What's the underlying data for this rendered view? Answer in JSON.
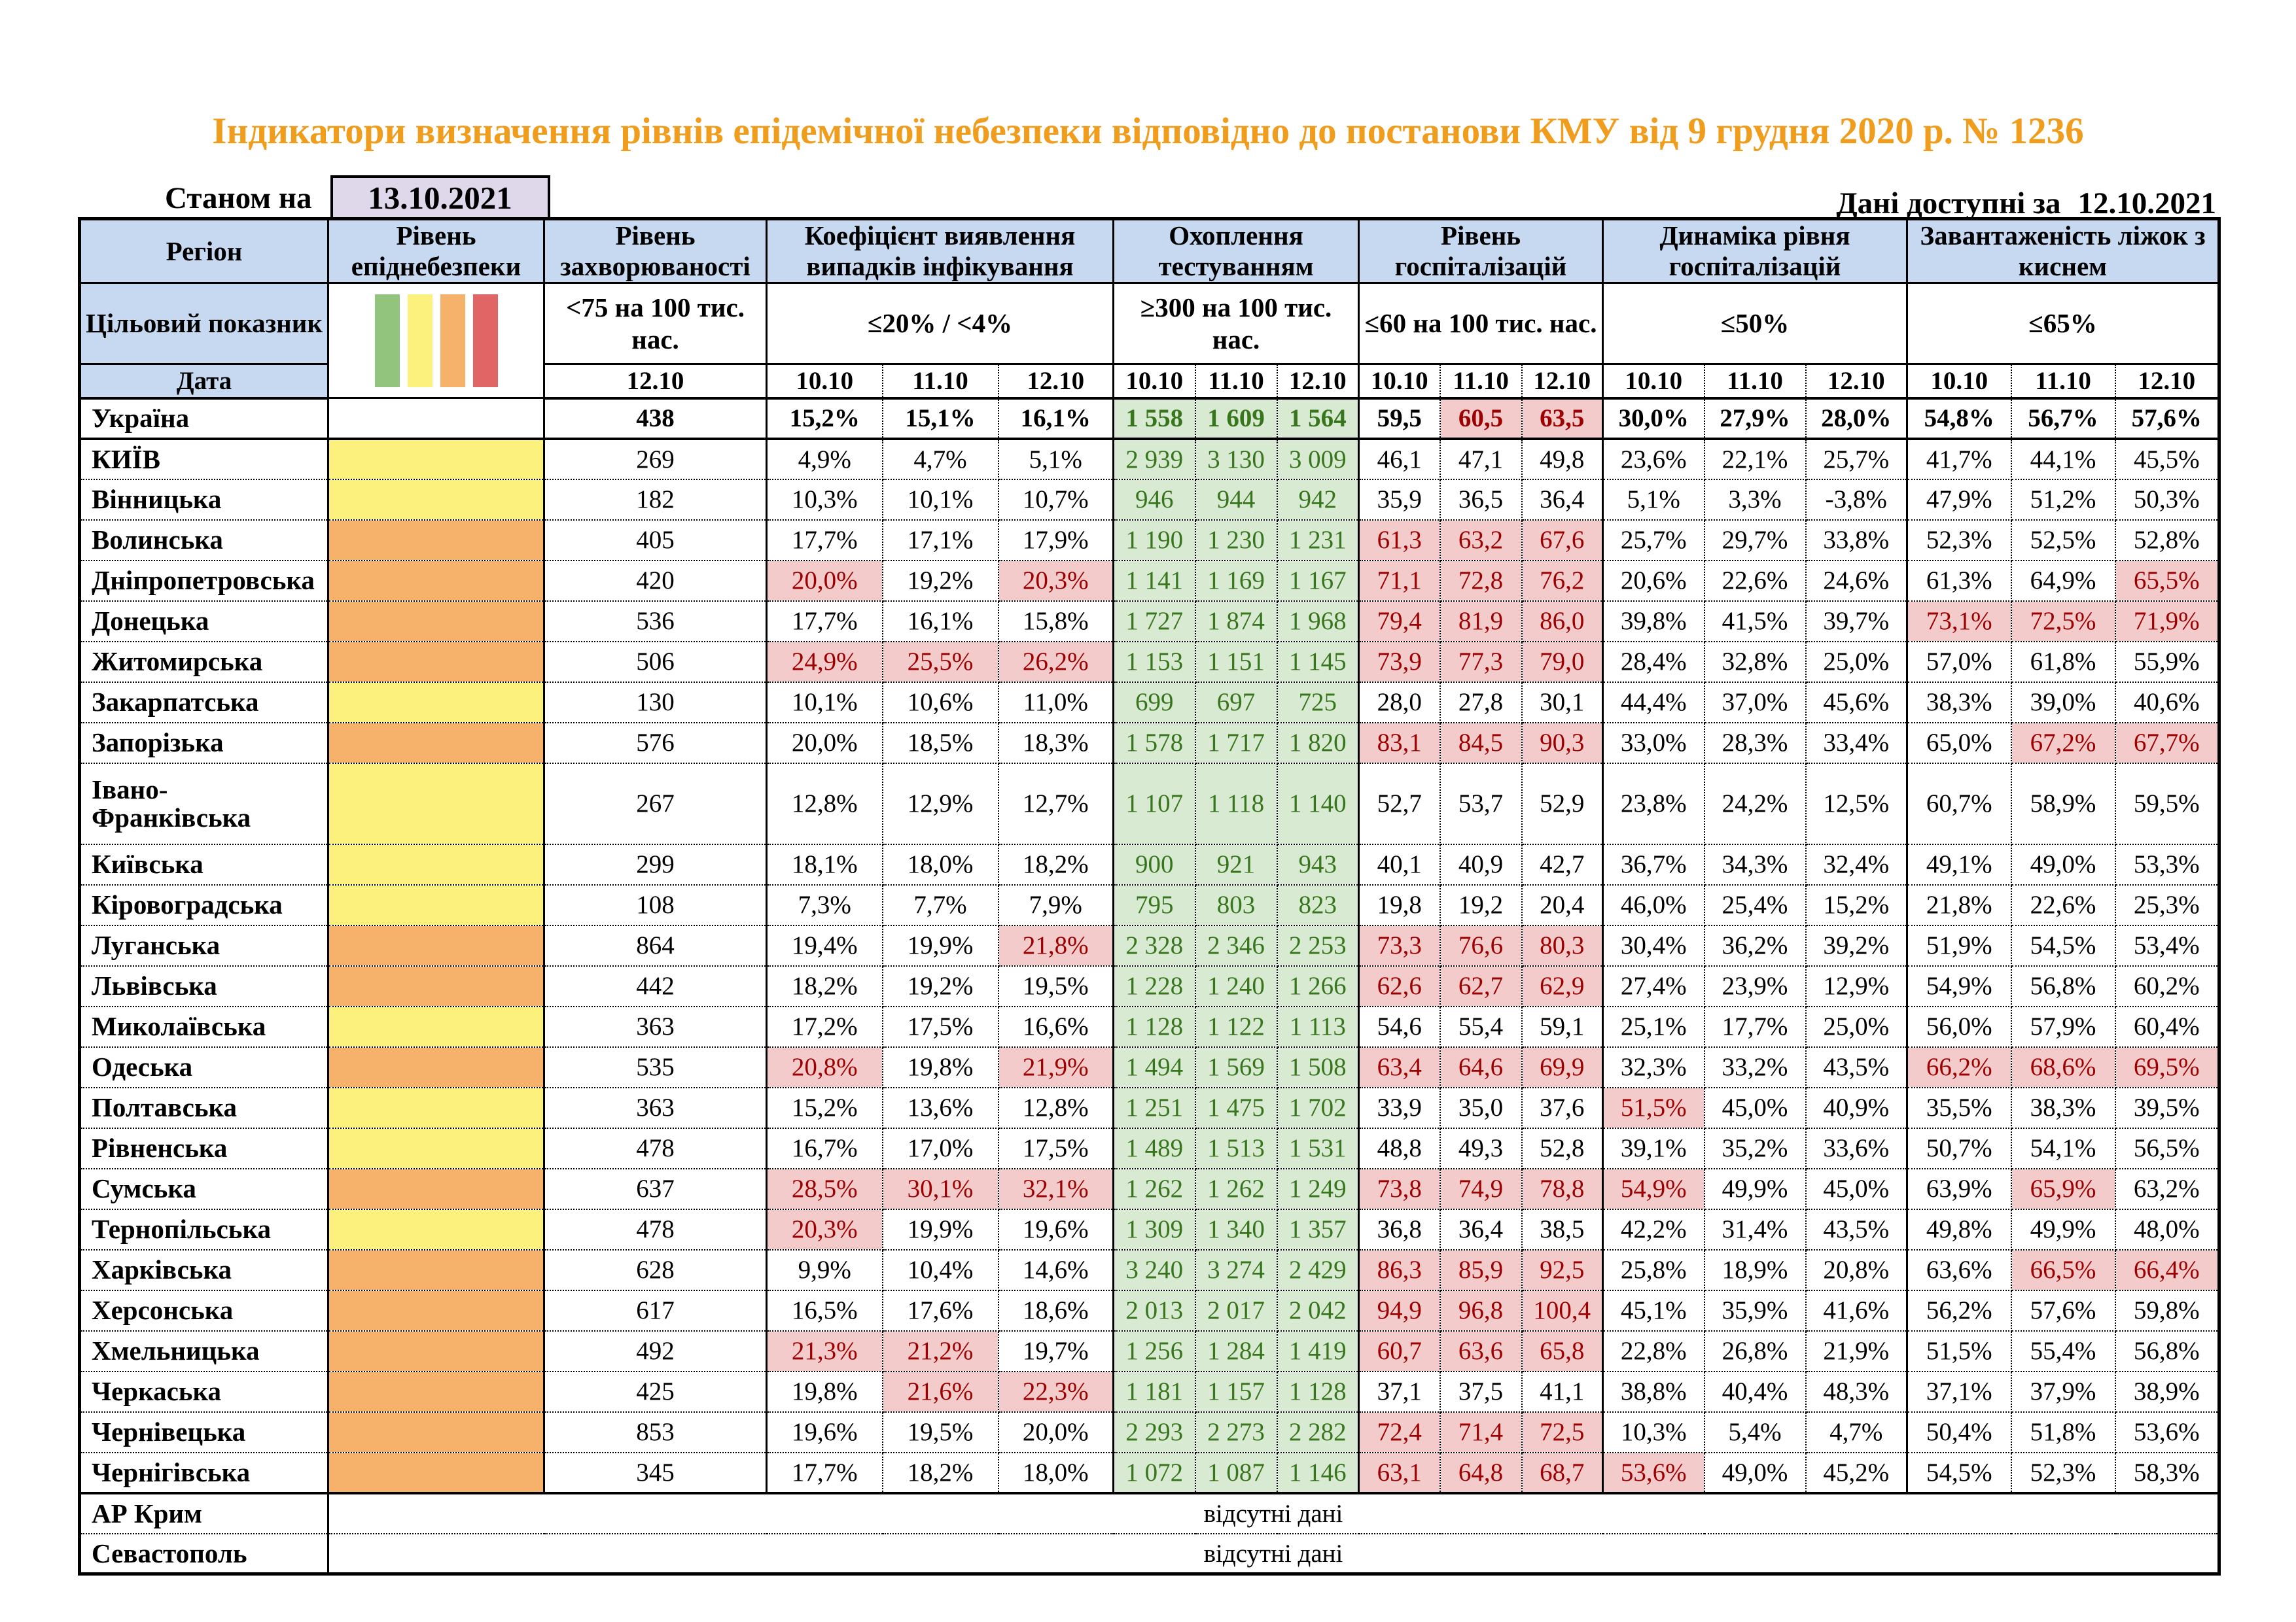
{
  "title": "Індикатори визначення рівнів епідемічної небезпеки відповідно до постанови КМУ від 9 грудня 2020 р. № 1236",
  "as_of_label": "Станом на",
  "as_of_date": "13.10.2021",
  "data_available_label": "Дані доступні за",
  "data_available_date": "12.10.2021",
  "no_data_text": "відсутні дані",
  "colors": {
    "title_orange": "#F09C1C",
    "header_blue": "#C6D9F0",
    "asof_box": "#DFD8EA",
    "level_green": "#93C47D",
    "level_yellow": "#FBF17C",
    "level_orange": "#F6B26B",
    "level_red": "#E06666",
    "bad_bg": "#F3CBCB",
    "bad_text": "#9C0000",
    "good_bg": "#D9EAD3",
    "good_text": "#38761D"
  },
  "legend_order": [
    "green",
    "yellow",
    "orange",
    "red"
  ],
  "columns": {
    "region": "Регіон",
    "target_label": "Цільовий показник",
    "date_label": "Дата",
    "groups": [
      {
        "id": "danger",
        "title": "Рівень епіднебезпеки",
        "target": "",
        "dates": []
      },
      {
        "id": "incidence",
        "title": "Рівень захворюваності",
        "target": "<75 на 100 тис. нас.",
        "dates": [
          "12.10"
        ]
      },
      {
        "id": "detection",
        "title": "Коефіцієнт виявлення випадків інфікування",
        "target": "≤20% / <4%",
        "dates": [
          "10.10",
          "11.10",
          "12.10"
        ]
      },
      {
        "id": "testing",
        "title": "Охоплення тестуванням",
        "target": "≥300 на 100 тис. нас.",
        "dates": [
          "10.10",
          "11.10",
          "12.10"
        ]
      },
      {
        "id": "hospital",
        "title": "Рівень госпіталізацій",
        "target": "≤60 на 100 тис. нас.",
        "dates": [
          "10.10",
          "11.10",
          "12.10"
        ]
      },
      {
        "id": "dynamics",
        "title": "Динаміка рівня госпіталізацій",
        "target": "≤50%",
        "dates": [
          "10.10",
          "11.10",
          "12.10"
        ]
      },
      {
        "id": "oxygen",
        "title": "Завантаженість ліжок з киснем",
        "target": "≤65%",
        "dates": [
          "10.10",
          "11.10",
          "12.10"
        ]
      }
    ]
  },
  "rows": [
    {
      "region": "Україна",
      "bold": true,
      "danger": null,
      "incidence": "438",
      "detection": [
        "15,2%",
        "15,1%",
        "16,1%"
      ],
      "testing": [
        "1 558",
        "1 609",
        "1 564"
      ],
      "hospital": [
        "59,5",
        "60,5",
        "63,5"
      ],
      "dynamics": [
        "30,0%",
        "27,9%",
        "28,0%"
      ],
      "oxygen": [
        "54,8%",
        "56,7%",
        "57,6%"
      ],
      "bad": {
        "hospital": [
          1,
          2
        ]
      }
    },
    {
      "region": "КИЇВ",
      "danger": "yellow",
      "incidence": "269",
      "detection": [
        "4,9%",
        "4,7%",
        "5,1%"
      ],
      "testing": [
        "2 939",
        "3 130",
        "3 009"
      ],
      "hospital": [
        "46,1",
        "47,1",
        "49,8"
      ],
      "dynamics": [
        "23,6%",
        "22,1%",
        "25,7%"
      ],
      "oxygen": [
        "41,7%",
        "44,1%",
        "45,5%"
      ]
    },
    {
      "region": "Вінницька",
      "danger": "yellow",
      "incidence": "182",
      "detection": [
        "10,3%",
        "10,1%",
        "10,7%"
      ],
      "testing": [
        "946",
        "944",
        "942"
      ],
      "hospital": [
        "35,9",
        "36,5",
        "36,4"
      ],
      "dynamics": [
        "5,1%",
        "3,3%",
        "-3,8%"
      ],
      "oxygen": [
        "47,9%",
        "51,2%",
        "50,3%"
      ]
    },
    {
      "region": "Волинська",
      "danger": "orange",
      "incidence": "405",
      "detection": [
        "17,7%",
        "17,1%",
        "17,9%"
      ],
      "testing": [
        "1 190",
        "1 230",
        "1 231"
      ],
      "hospital": [
        "61,3",
        "63,2",
        "67,6"
      ],
      "dynamics": [
        "25,7%",
        "29,7%",
        "33,8%"
      ],
      "oxygen": [
        "52,3%",
        "52,5%",
        "52,8%"
      ],
      "bad": {
        "hospital": [
          0,
          1,
          2
        ]
      }
    },
    {
      "region": "Дніпропетровська",
      "danger": "orange",
      "incidence": "420",
      "detection": [
        "20,0%",
        "19,2%",
        "20,3%"
      ],
      "testing": [
        "1 141",
        "1 169",
        "1 167"
      ],
      "hospital": [
        "71,1",
        "72,8",
        "76,2"
      ],
      "dynamics": [
        "20,6%",
        "22,6%",
        "24,6%"
      ],
      "oxygen": [
        "61,3%",
        "64,9%",
        "65,5%"
      ],
      "bad": {
        "detection": [
          0,
          2
        ],
        "hospital": [
          0,
          1,
          2
        ],
        "oxygen": [
          2
        ]
      }
    },
    {
      "region": "Донецька",
      "danger": "orange",
      "incidence": "536",
      "detection": [
        "17,7%",
        "16,1%",
        "15,8%"
      ],
      "testing": [
        "1 727",
        "1 874",
        "1 968"
      ],
      "hospital": [
        "79,4",
        "81,9",
        "86,0"
      ],
      "dynamics": [
        "39,8%",
        "41,5%",
        "39,7%"
      ],
      "oxygen": [
        "73,1%",
        "72,5%",
        "71,9%"
      ],
      "bad": {
        "hospital": [
          0,
          1,
          2
        ],
        "oxygen": [
          0,
          1,
          2
        ]
      }
    },
    {
      "region": "Житомирська",
      "danger": "orange",
      "incidence": "506",
      "detection": [
        "24,9%",
        "25,5%",
        "26,2%"
      ],
      "testing": [
        "1 153",
        "1 151",
        "1 145"
      ],
      "hospital": [
        "73,9",
        "77,3",
        "79,0"
      ],
      "dynamics": [
        "28,4%",
        "32,8%",
        "25,0%"
      ],
      "oxygen": [
        "57,0%",
        "61,8%",
        "55,9%"
      ],
      "bad": {
        "detection": [
          0,
          1,
          2
        ],
        "hospital": [
          0,
          1,
          2
        ]
      }
    },
    {
      "region": "Закарпатська",
      "danger": "yellow",
      "incidence": "130",
      "detection": [
        "10,1%",
        "10,6%",
        "11,0%"
      ],
      "testing": [
        "699",
        "697",
        "725"
      ],
      "hospital": [
        "28,0",
        "27,8",
        "30,1"
      ],
      "dynamics": [
        "44,4%",
        "37,0%",
        "45,6%"
      ],
      "oxygen": [
        "38,3%",
        "39,0%",
        "40,6%"
      ]
    },
    {
      "region": "Запорізька",
      "danger": "orange",
      "incidence": "576",
      "detection": [
        "20,0%",
        "18,5%",
        "18,3%"
      ],
      "testing": [
        "1 578",
        "1 717",
        "1 820"
      ],
      "hospital": [
        "83,1",
        "84,5",
        "90,3"
      ],
      "dynamics": [
        "33,0%",
        "28,3%",
        "33,4%"
      ],
      "oxygen": [
        "65,0%",
        "67,2%",
        "67,7%"
      ],
      "bad": {
        "hospital": [
          0,
          1,
          2
        ],
        "oxygen": [
          1,
          2
        ]
      }
    },
    {
      "region": "Івано-Франківська",
      "danger": "yellow",
      "tall": true,
      "incidence": "267",
      "detection": [
        "12,8%",
        "12,9%",
        "12,7%"
      ],
      "testing": [
        "1 107",
        "1 118",
        "1 140"
      ],
      "hospital": [
        "52,7",
        "53,7",
        "52,9"
      ],
      "dynamics": [
        "23,8%",
        "24,2%",
        "12,5%"
      ],
      "oxygen": [
        "60,7%",
        "58,9%",
        "59,5%"
      ]
    },
    {
      "region": "Київська",
      "danger": "yellow",
      "incidence": "299",
      "detection": [
        "18,1%",
        "18,0%",
        "18,2%"
      ],
      "testing": [
        "900",
        "921",
        "943"
      ],
      "hospital": [
        "40,1",
        "40,9",
        "42,7"
      ],
      "dynamics": [
        "36,7%",
        "34,3%",
        "32,4%"
      ],
      "oxygen": [
        "49,1%",
        "49,0%",
        "53,3%"
      ]
    },
    {
      "region": "Кіровоградська",
      "danger": "yellow",
      "incidence": "108",
      "detection": [
        "7,3%",
        "7,7%",
        "7,9%"
      ],
      "testing": [
        "795",
        "803",
        "823"
      ],
      "hospital": [
        "19,8",
        "19,2",
        "20,4"
      ],
      "dynamics": [
        "46,0%",
        "25,4%",
        "15,2%"
      ],
      "oxygen": [
        "21,8%",
        "22,6%",
        "25,3%"
      ]
    },
    {
      "region": "Луганська",
      "danger": "orange",
      "incidence": "864",
      "detection": [
        "19,4%",
        "19,9%",
        "21,8%"
      ],
      "testing": [
        "2 328",
        "2 346",
        "2 253"
      ],
      "hospital": [
        "73,3",
        "76,6",
        "80,3"
      ],
      "dynamics": [
        "30,4%",
        "36,2%",
        "39,2%"
      ],
      "oxygen": [
        "51,9%",
        "54,5%",
        "53,4%"
      ],
      "bad": {
        "detection": [
          2
        ],
        "hospital": [
          0,
          1,
          2
        ]
      }
    },
    {
      "region": "Львівська",
      "danger": "orange",
      "incidence": "442",
      "detection": [
        "18,2%",
        "19,2%",
        "19,5%"
      ],
      "testing": [
        "1 228",
        "1 240",
        "1 266"
      ],
      "hospital": [
        "62,6",
        "62,7",
        "62,9"
      ],
      "dynamics": [
        "27,4%",
        "23,9%",
        "12,9%"
      ],
      "oxygen": [
        "54,9%",
        "56,8%",
        "60,2%"
      ],
      "bad": {
        "hospital": [
          0,
          1,
          2
        ]
      }
    },
    {
      "region": "Миколаївська",
      "danger": "yellow",
      "incidence": "363",
      "detection": [
        "17,2%",
        "17,5%",
        "16,6%"
      ],
      "testing": [
        "1 128",
        "1 122",
        "1 113"
      ],
      "hospital": [
        "54,6",
        "55,4",
        "59,1"
      ],
      "dynamics": [
        "25,1%",
        "17,7%",
        "25,0%"
      ],
      "oxygen": [
        "56,0%",
        "57,9%",
        "60,4%"
      ]
    },
    {
      "region": "Одеська",
      "danger": "orange",
      "incidence": "535",
      "detection": [
        "20,8%",
        "19,8%",
        "21,9%"
      ],
      "testing": [
        "1 494",
        "1 569",
        "1 508"
      ],
      "hospital": [
        "63,4",
        "64,6",
        "69,9"
      ],
      "dynamics": [
        "32,3%",
        "33,2%",
        "43,5%"
      ],
      "oxygen": [
        "66,2%",
        "68,6%",
        "69,5%"
      ],
      "bad": {
        "detection": [
          0,
          2
        ],
        "hospital": [
          0,
          1,
          2
        ],
        "oxygen": [
          0,
          1,
          2
        ]
      }
    },
    {
      "region": "Полтавська",
      "danger": "yellow",
      "incidence": "363",
      "detection": [
        "15,2%",
        "13,6%",
        "12,8%"
      ],
      "testing": [
        "1 251",
        "1 475",
        "1 702"
      ],
      "hospital": [
        "33,9",
        "35,0",
        "37,6"
      ],
      "dynamics": [
        "51,5%",
        "45,0%",
        "40,9%"
      ],
      "oxygen": [
        "35,5%",
        "38,3%",
        "39,5%"
      ],
      "bad": {
        "dynamics": [
          0
        ]
      }
    },
    {
      "region": "Рівненська",
      "danger": "yellow",
      "incidence": "478",
      "detection": [
        "16,7%",
        "17,0%",
        "17,5%"
      ],
      "testing": [
        "1 489",
        "1 513",
        "1 531"
      ],
      "hospital": [
        "48,8",
        "49,3",
        "52,8"
      ],
      "dynamics": [
        "39,1%",
        "35,2%",
        "33,6%"
      ],
      "oxygen": [
        "50,7%",
        "54,1%",
        "56,5%"
      ]
    },
    {
      "region": "Сумська",
      "danger": "orange",
      "incidence": "637",
      "detection": [
        "28,5%",
        "30,1%",
        "32,1%"
      ],
      "testing": [
        "1 262",
        "1 262",
        "1 249"
      ],
      "hospital": [
        "73,8",
        "74,9",
        "78,8"
      ],
      "dynamics": [
        "54,9%",
        "49,9%",
        "45,0%"
      ],
      "oxygen": [
        "63,9%",
        "65,9%",
        "63,2%"
      ],
      "bad": {
        "detection": [
          0,
          1,
          2
        ],
        "hospital": [
          0,
          1,
          2
        ],
        "dynamics": [
          0
        ],
        "oxygen": [
          1
        ]
      }
    },
    {
      "region": "Тернопільська",
      "danger": "yellow",
      "incidence": "478",
      "detection": [
        "20,3%",
        "19,9%",
        "19,6%"
      ],
      "testing": [
        "1 309",
        "1 340",
        "1 357"
      ],
      "hospital": [
        "36,8",
        "36,4",
        "38,5"
      ],
      "dynamics": [
        "42,2%",
        "31,4%",
        "43,5%"
      ],
      "oxygen": [
        "49,8%",
        "49,9%",
        "48,0%"
      ],
      "bad": {
        "detection": [
          0
        ]
      }
    },
    {
      "region": "Харківська",
      "danger": "orange",
      "incidence": "628",
      "detection": [
        "9,9%",
        "10,4%",
        "14,6%"
      ],
      "testing": [
        "3 240",
        "3 274",
        "2 429"
      ],
      "hospital": [
        "86,3",
        "85,9",
        "92,5"
      ],
      "dynamics": [
        "25,8%",
        "18,9%",
        "20,8%"
      ],
      "oxygen": [
        "63,6%",
        "66,5%",
        "66,4%"
      ],
      "bad": {
        "hospital": [
          0,
          1,
          2
        ],
        "oxygen": [
          1,
          2
        ]
      }
    },
    {
      "region": "Херсонська",
      "danger": "orange",
      "incidence": "617",
      "detection": [
        "16,5%",
        "17,6%",
        "18,6%"
      ],
      "testing": [
        "2 013",
        "2 017",
        "2 042"
      ],
      "hospital": [
        "94,9",
        "96,8",
        "100,4"
      ],
      "dynamics": [
        "45,1%",
        "35,9%",
        "41,6%"
      ],
      "oxygen": [
        "56,2%",
        "57,6%",
        "59,8%"
      ],
      "bad": {
        "hospital": [
          0,
          1,
          2
        ]
      }
    },
    {
      "region": "Хмельницька",
      "danger": "orange",
      "incidence": "492",
      "detection": [
        "21,3%",
        "21,2%",
        "19,7%"
      ],
      "testing": [
        "1 256",
        "1 284",
        "1 419"
      ],
      "hospital": [
        "60,7",
        "63,6",
        "65,8"
      ],
      "dynamics": [
        "22,8%",
        "26,8%",
        "21,9%"
      ],
      "oxygen": [
        "51,5%",
        "55,4%",
        "56,8%"
      ],
      "bad": {
        "detection": [
          0,
          1
        ],
        "hospital": [
          0,
          1,
          2
        ]
      }
    },
    {
      "region": "Черкаська",
      "danger": "orange",
      "incidence": "425",
      "detection": [
        "19,8%",
        "21,6%",
        "22,3%"
      ],
      "testing": [
        "1 181",
        "1 157",
        "1 128"
      ],
      "hospital": [
        "37,1",
        "37,5",
        "41,1"
      ],
      "dynamics": [
        "38,8%",
        "40,4%",
        "48,3%"
      ],
      "oxygen": [
        "37,1%",
        "37,9%",
        "38,9%"
      ],
      "bad": {
        "detection": [
          1,
          2
        ]
      }
    },
    {
      "region": "Чернівецька",
      "danger": "orange",
      "incidence": "853",
      "detection": [
        "19,6%",
        "19,5%",
        "20,0%"
      ],
      "testing": [
        "2 293",
        "2 273",
        "2 282"
      ],
      "hospital": [
        "72,4",
        "71,4",
        "72,5"
      ],
      "dynamics": [
        "10,3%",
        "5,4%",
        "4,7%"
      ],
      "oxygen": [
        "50,4%",
        "51,8%",
        "53,6%"
      ],
      "bad": {
        "hospital": [
          0,
          1,
          2
        ]
      }
    },
    {
      "region": "Чернігівська",
      "danger": "orange",
      "incidence": "345",
      "detection": [
        "17,7%",
        "18,2%",
        "18,0%"
      ],
      "testing": [
        "1 072",
        "1 087",
        "1 146"
      ],
      "hospital": [
        "63,1",
        "64,8",
        "68,7"
      ],
      "dynamics": [
        "53,6%",
        "49,0%",
        "45,2%"
      ],
      "oxygen": [
        "54,5%",
        "52,3%",
        "58,3%"
      ],
      "bad": {
        "hospital": [
          0,
          1,
          2
        ],
        "dynamics": [
          0
        ]
      }
    }
  ],
  "no_data_rows": [
    {
      "region": "АР Крим",
      "text": "відсутні дані"
    },
    {
      "region": "Севастополь",
      "text": "відсутні дані"
    }
  ]
}
